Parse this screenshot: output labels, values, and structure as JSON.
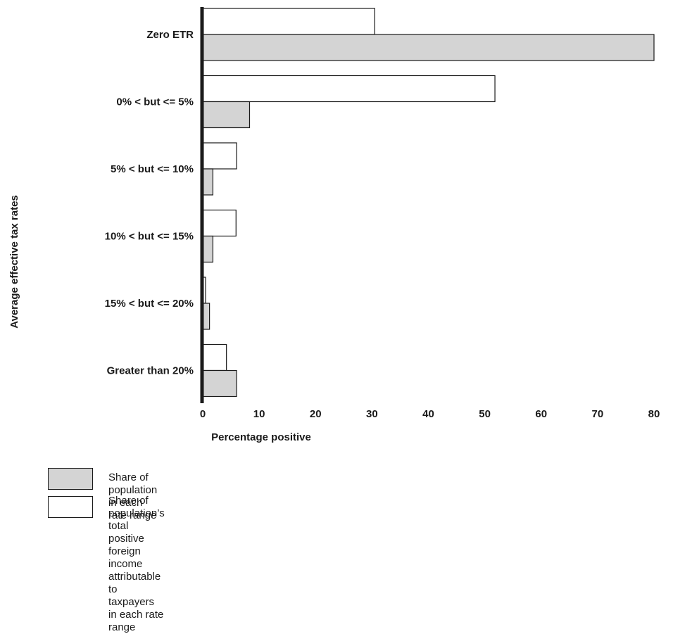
{
  "chart_data": {
    "type": "bar",
    "orientation": "horizontal",
    "categories": [
      "Zero ETR",
      "0% < but <= 5%",
      "5% < but <= 10%",
      "10% < but <= 15%",
      "15% < but <= 20%",
      "Greater than 20%"
    ],
    "series": [
      {
        "name": "Share of population’s total positive foreign income\nattributable to taxpayers in each rate range",
        "color": "#ffffff",
        "values": [
          30.5,
          51.8,
          6.0,
          5.9,
          0.5,
          4.2
        ]
      },
      {
        "name": "Share of population in each rate range",
        "color": "#d4d4d4",
        "values": [
          80,
          8.3,
          1.8,
          1.8,
          1.2,
          6.0
        ]
      }
    ],
    "xlabel": "Percentage positive",
    "ylabel": "Average effective tax rates",
    "xlim": [
      0,
      80
    ],
    "xticks": [
      0,
      10,
      20,
      30,
      40,
      50,
      60,
      70,
      80
    ],
    "grid": false,
    "legend_position": "bottom-left"
  },
  "legend": {
    "items": [
      {
        "label": "Share of population in each rate range",
        "color": "#d4d4d4"
      },
      {
        "label": "Share of population’s total positive foreign income\nattributable to taxpayers in each rate range",
        "color": "#ffffff"
      }
    ]
  }
}
